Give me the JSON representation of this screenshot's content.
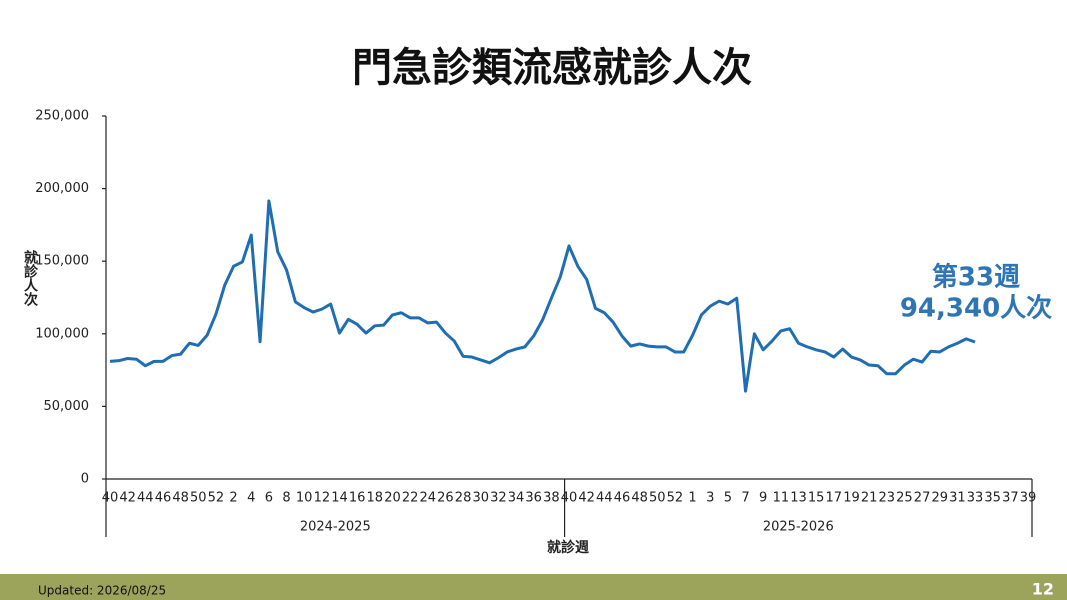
{
  "chart_data": {
    "type": "line",
    "title": "門急診類流感就診人次",
    "x_label": "就診週",
    "y_label": "就診人次",
    "categories": [
      "40",
      null,
      "42",
      null,
      "44",
      null,
      "46",
      null,
      "48",
      null,
      "50",
      null,
      "52",
      null,
      "2",
      null,
      "4",
      null,
      "6",
      null,
      "8",
      null,
      "10",
      null,
      "12",
      null,
      "14",
      null,
      "16",
      null,
      "18",
      null,
      "20",
      null,
      "22",
      null,
      "24",
      null,
      "26",
      null,
      "28",
      null,
      "30",
      null,
      "32",
      null,
      "34",
      null,
      "36",
      null,
      "38",
      null,
      "40",
      null,
      "42",
      null,
      "44",
      null,
      "46",
      null,
      "48",
      null,
      "50",
      null,
      "52",
      null,
      "1",
      null,
      "3",
      null,
      "5",
      null,
      "7",
      null,
      "9",
      null,
      "11",
      null,
      "13",
      null,
      "15",
      null,
      "17",
      null,
      "19",
      null,
      "21",
      null,
      "23",
      null,
      "25",
      null,
      "27",
      null,
      "29",
      null,
      "31",
      null,
      "33",
      null,
      "35",
      null,
      "37",
      null,
      "39"
    ],
    "groups": [
      {
        "name": "2024-2025",
        "count": 52
      },
      {
        "name": "2025-2026",
        "count": 53
      }
    ],
    "series": [
      {
        "name": "就診人次",
        "color": "#1f6db3",
        "values": [
          81000,
          81500,
          83000,
          82500,
          78000,
          81000,
          81000,
          85000,
          86000,
          93500,
          92000,
          99000,
          113500,
          133500,
          146500,
          149500,
          168000,
          94500,
          191500,
          156500,
          144000,
          122000,
          118000,
          115000,
          117000,
          120500,
          100500,
          110000,
          106500,
          100500,
          105500,
          106000,
          113000,
          114500,
          111000,
          111000,
          107500,
          108000,
          100500,
          95000,
          84500,
          84000,
          82000,
          80000,
          83500,
          87500,
          89500,
          91000,
          98500,
          109500,
          124500,
          139000,
          160500,
          146500,
          137500,
          117500,
          114500,
          108000,
          98500,
          91500,
          93000,
          91500,
          91000,
          91000,
          87500,
          87500,
          99000,
          113000,
          119000,
          122500,
          120500,
          124500,
          60500,
          100000,
          89000,
          95000,
          102000,
          103500,
          93500,
          91000,
          89000,
          87500,
          84000,
          89500,
          84000,
          82000,
          78500,
          78000,
          72500,
          72500,
          78500,
          82500,
          80500,
          88000,
          87500,
          91000,
          93500,
          96500,
          94340,
          null,
          null,
          null,
          null,
          null,
          null
        ]
      }
    ],
    "ylim": [
      0,
      250000
    ],
    "yticks": [
      0,
      {
        "value": 50000,
        "label": "50,000"
      },
      {
        "value": 100000,
        "label": "100,000"
      },
      {
        "value": 150000,
        "label": "150,000"
      },
      {
        "value": 200000,
        "label": "200,000"
      },
      {
        "value": 250000,
        "label": "250,000"
      }
    ],
    "annotations": [
      "第33週",
      "94,340人次"
    ]
  },
  "footer": {
    "updated": "Updated: 2026/08/25",
    "page": "12"
  }
}
